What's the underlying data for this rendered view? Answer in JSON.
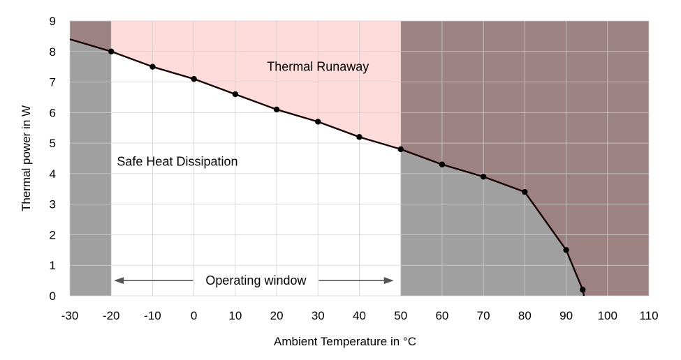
{
  "chart_data": {
    "type": "line",
    "xlabel": "Ambient Temperature in °C",
    "ylabel": "Thermal power in W",
    "xlim": [
      -30,
      110
    ],
    "ylim": [
      0,
      9
    ],
    "xticks": [
      -30,
      -20,
      -10,
      0,
      10,
      20,
      30,
      40,
      50,
      60,
      70,
      80,
      90,
      100,
      110
    ],
    "yticks": [
      0,
      1,
      2,
      3,
      4,
      5,
      6,
      7,
      8,
      9
    ],
    "grid": true,
    "series": [
      {
        "x": [
          -30,
          -20,
          -10,
          0,
          10,
          20,
          30,
          40,
          50,
          60,
          70,
          80,
          90,
          94,
          94.3
        ],
        "y": [
          8.4,
          8.0,
          7.5,
          7.1,
          6.6,
          6.1,
          5.7,
          5.2,
          4.8,
          4.3,
          3.9,
          3.4,
          1.5,
          0.2,
          0
        ],
        "markers": [
          -20,
          -10,
          0,
          10,
          20,
          30,
          40,
          50,
          60,
          70,
          80,
          90,
          94
        ]
      }
    ],
    "regions": [
      {
        "name": "out-of-range-low",
        "x_range": [
          -30,
          -20
        ],
        "below_color": "#a0a0a0",
        "above_color": "#9c8282"
      },
      {
        "name": "operating",
        "x_range": [
          -20,
          50
        ],
        "below_color": "#ffffff",
        "above_color": "#ffdcdc"
      },
      {
        "name": "out-of-range-high",
        "x_range": [
          50,
          110
        ],
        "below_color": "#a0a0a0",
        "above_color": "#9c8282"
      }
    ],
    "annotations": {
      "thermal_runaway": {
        "text": "Thermal Runaway",
        "x": 30,
        "y": 7.5
      },
      "safe_dissipation": {
        "text": "Safe Heat Dissipation",
        "x": -4,
        "y": 4.4
      },
      "operating_window": {
        "text": "Operating window",
        "x_range": [
          -20,
          50
        ],
        "y": 0.5
      }
    },
    "colors": {
      "line": "#1a0000",
      "marker": "#000000",
      "grid": "#d0d0d0",
      "arrow": "#555555"
    }
  }
}
